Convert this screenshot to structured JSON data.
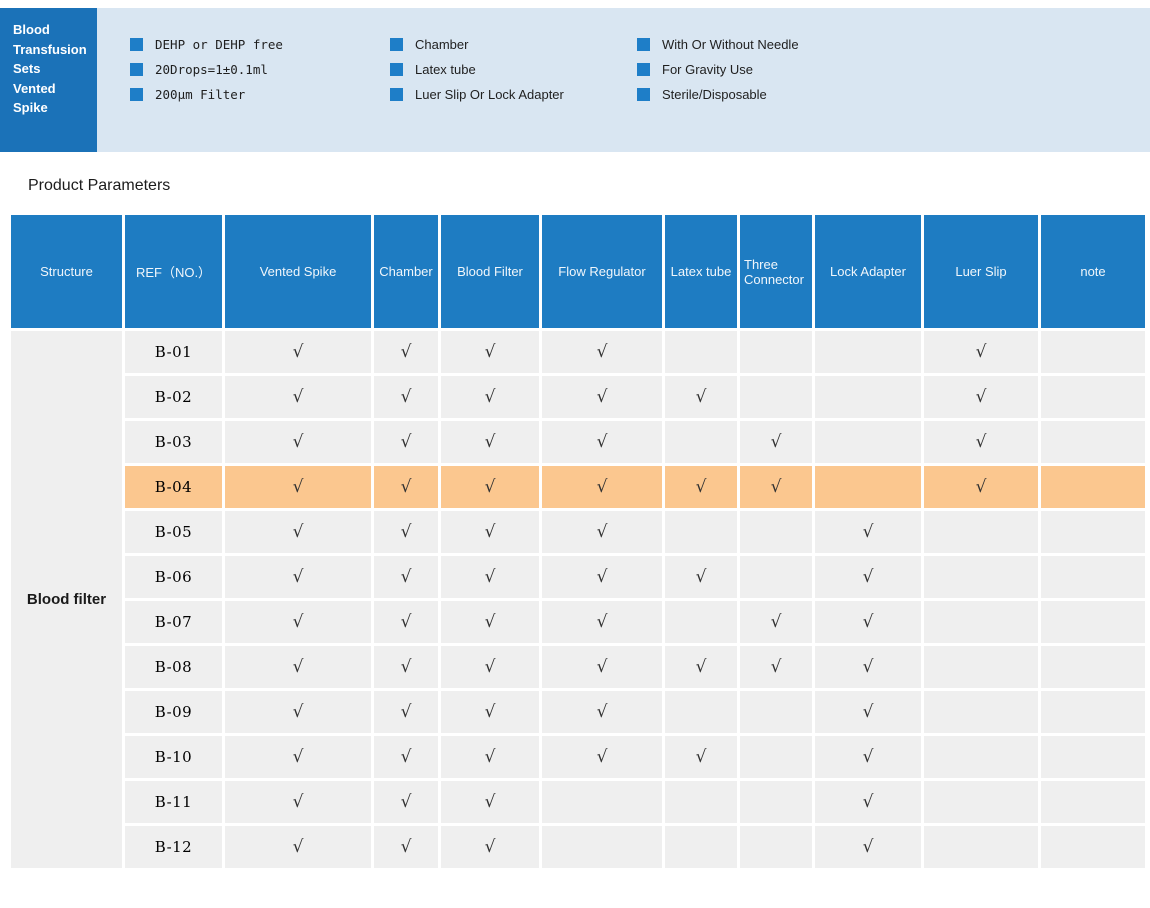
{
  "header": {
    "title_lines": [
      "Blood",
      "Transfusion",
      "Sets",
      "Vented",
      "Spike"
    ],
    "feature_columns": [
      [
        "DEHP or DEHP free",
        "20Drops=1±0.1ml",
        "200μm Filter"
      ],
      [
        "Chamber",
        "Latex tube",
        "Luer Slip Or Lock Adapter"
      ],
      [
        "With Or Without Needle",
        "For Gravity Use",
        "Sterile/Disposable"
      ]
    ]
  },
  "section": {
    "title": "Product Parameters"
  },
  "table": {
    "columns": [
      "Structure",
      "REF（NO.）",
      "Vented Spike",
      "Chamber",
      "Blood Filter",
      "Flow Regulator",
      "Latex tube",
      "Three Connector",
      "Lock Adapter",
      "Luer Slip",
      "note"
    ],
    "structure_label": "Blood filter",
    "check_symbol": "√",
    "rows": [
      {
        "ref": "B-01",
        "checks": [
          1,
          1,
          1,
          1,
          0,
          0,
          0,
          1,
          0
        ],
        "highlight": false
      },
      {
        "ref": "B-02",
        "checks": [
          1,
          1,
          1,
          1,
          1,
          0,
          0,
          1,
          0
        ],
        "highlight": false
      },
      {
        "ref": "B-03",
        "checks": [
          1,
          1,
          1,
          1,
          0,
          1,
          0,
          1,
          0
        ],
        "highlight": false
      },
      {
        "ref": "B-04",
        "checks": [
          1,
          1,
          1,
          1,
          1,
          1,
          0,
          1,
          0
        ],
        "highlight": true
      },
      {
        "ref": "B-05",
        "checks": [
          1,
          1,
          1,
          1,
          0,
          0,
          1,
          0,
          0
        ],
        "highlight": false
      },
      {
        "ref": "B-06",
        "checks": [
          1,
          1,
          1,
          1,
          1,
          0,
          1,
          0,
          0
        ],
        "highlight": false
      },
      {
        "ref": "B-07",
        "checks": [
          1,
          1,
          1,
          1,
          0,
          1,
          1,
          0,
          0
        ],
        "highlight": false
      },
      {
        "ref": "B-08",
        "checks": [
          1,
          1,
          1,
          1,
          1,
          1,
          1,
          0,
          0
        ],
        "highlight": false
      },
      {
        "ref": "B-09",
        "checks": [
          1,
          1,
          1,
          1,
          0,
          0,
          1,
          0,
          0
        ],
        "highlight": false
      },
      {
        "ref": "B-10",
        "checks": [
          1,
          1,
          1,
          1,
          1,
          0,
          1,
          0,
          0
        ],
        "highlight": false
      },
      {
        "ref": "B-11",
        "checks": [
          1,
          1,
          1,
          0,
          0,
          0,
          1,
          0,
          0
        ],
        "highlight": false
      },
      {
        "ref": "B-12",
        "checks": [
          1,
          1,
          1,
          0,
          0,
          0,
          1,
          0,
          0
        ],
        "highlight": false
      }
    ]
  },
  "colors": {
    "dark_box_blue": "#1b72b8",
    "banner_bg": "#d9e6f2",
    "bullet_blue": "#1e7ec8",
    "table_header_blue": "#1e7cc2",
    "row_gray": "#efefef",
    "highlight_orange": "#fbc78f",
    "check_color": "#333333"
  }
}
